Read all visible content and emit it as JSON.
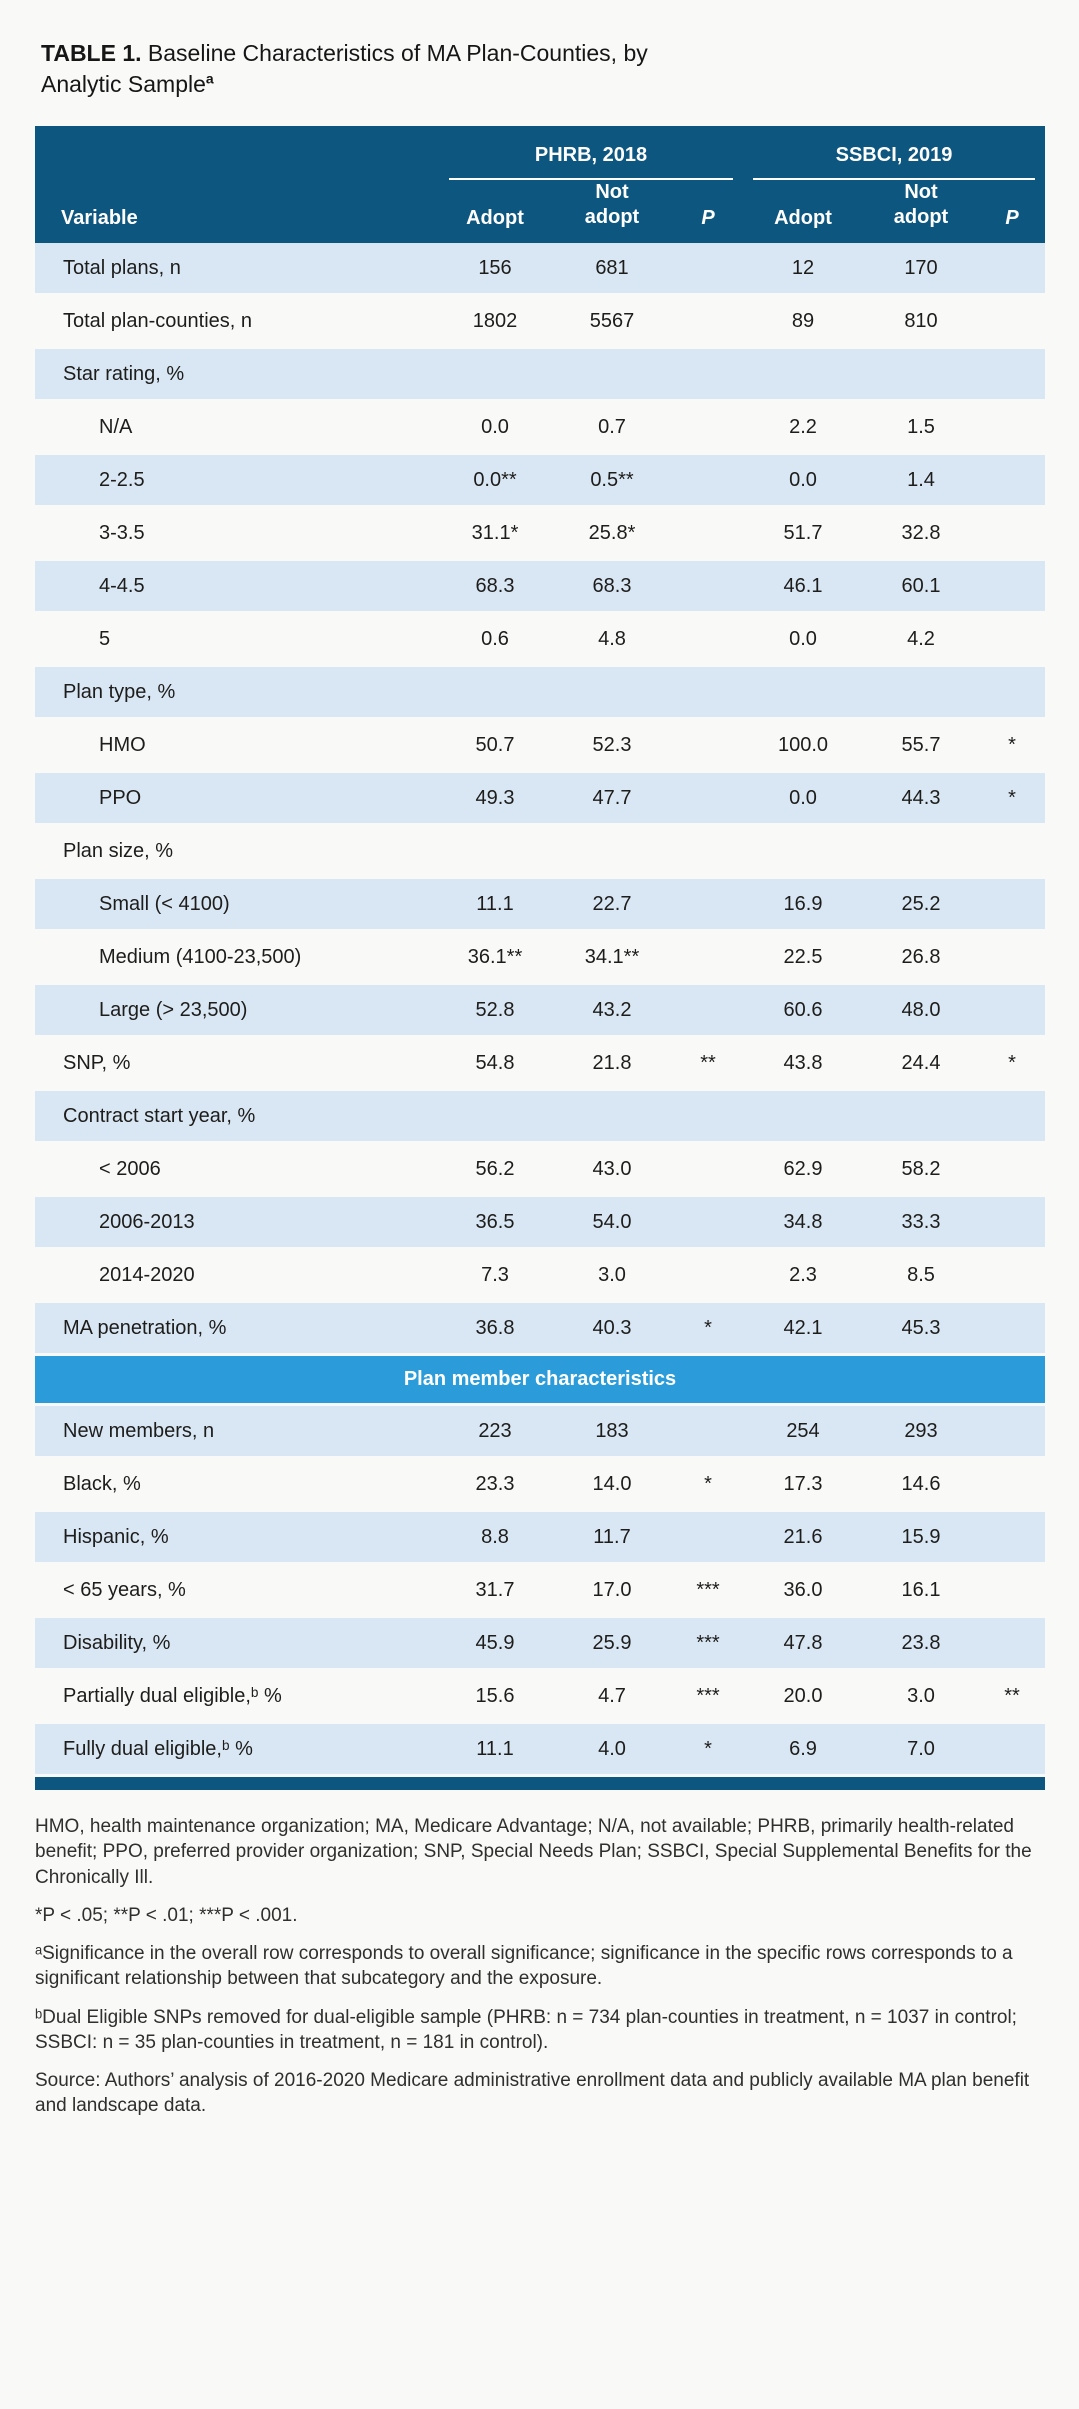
{
  "title": {
    "label": "TABLE 1.",
    "text": " Baseline Characteristics of MA Plan-Counties, by Analytic Sample",
    "superscript": "a"
  },
  "colors": {
    "header_blue": "#0d567f",
    "stripe_blue": "#d9e6f3",
    "banner_blue": "#2b9cd9",
    "bottom_bar_blue": "#0d567f",
    "body_text": "#1d1d1b"
  },
  "table": {
    "group_headers": [
      {
        "label": "PHRB, 2018"
      },
      {
        "label": "SSBCI, 2019"
      }
    ],
    "columns": {
      "variable": "Variable",
      "adopt": "Adopt",
      "not_adopt": "Not adopt",
      "p": "P"
    },
    "rows": [
      {
        "type": "data",
        "label": "Total plans, n",
        "cells": [
          "156",
          "681",
          "",
          "12",
          "170",
          ""
        ]
      },
      {
        "type": "data",
        "label": "Total plan-counties, n",
        "cells": [
          "1802",
          "5567",
          "",
          "89",
          "810",
          ""
        ]
      },
      {
        "type": "section",
        "label": "Star rating, %",
        "cells": [
          "",
          "",
          "",
          "",
          "",
          ""
        ]
      },
      {
        "type": "data",
        "indent": true,
        "label": "N/A",
        "cells": [
          "0.0",
          "0.7",
          "",
          "2.2",
          "1.5",
          ""
        ]
      },
      {
        "type": "data",
        "indent": true,
        "label": "2-2.5",
        "cells": [
          "0.0**",
          "0.5**",
          "",
          "0.0",
          "1.4",
          ""
        ]
      },
      {
        "type": "data",
        "indent": true,
        "label": "3-3.5",
        "cells": [
          "31.1*",
          "25.8*",
          "",
          "51.7",
          "32.8",
          ""
        ]
      },
      {
        "type": "data",
        "indent": true,
        "label": "4-4.5",
        "cells": [
          "68.3",
          "68.3",
          "",
          "46.1",
          "60.1",
          ""
        ]
      },
      {
        "type": "data",
        "indent": true,
        "label": "5",
        "cells": [
          "0.6",
          "4.8",
          "",
          "0.0",
          "4.2",
          ""
        ]
      },
      {
        "type": "section",
        "label": "Plan type, %",
        "cells": [
          "",
          "",
          "",
          "",
          "",
          ""
        ]
      },
      {
        "type": "data",
        "indent": true,
        "label": "HMO",
        "cells": [
          "50.7",
          "52.3",
          "",
          "100.0",
          "55.7",
          "*"
        ]
      },
      {
        "type": "data",
        "indent": true,
        "label": "PPO",
        "cells": [
          "49.3",
          "47.7",
          "",
          "0.0",
          "44.3",
          "*"
        ]
      },
      {
        "type": "section",
        "label": "Plan size, %",
        "cells": [
          "",
          "",
          "",
          "",
          "",
          ""
        ]
      },
      {
        "type": "data",
        "indent": true,
        "label": "Small (< 4100)",
        "cells": [
          "11.1",
          "22.7",
          "",
          "16.9",
          "25.2",
          ""
        ]
      },
      {
        "type": "data",
        "indent": true,
        "label": "Medium (4100-23,500)",
        "cells": [
          "36.1**",
          "34.1**",
          "",
          "22.5",
          "26.8",
          ""
        ]
      },
      {
        "type": "data",
        "indent": true,
        "label": "Large (> 23,500)",
        "cells": [
          "52.8",
          "43.2",
          "",
          "60.6",
          "48.0",
          ""
        ]
      },
      {
        "type": "data",
        "label": "SNP, %",
        "cells": [
          "54.8",
          "21.8",
          "**",
          "43.8",
          "24.4",
          "*"
        ]
      },
      {
        "type": "section",
        "label": "Contract start year, %",
        "cells": [
          "",
          "",
          "",
          "",
          "",
          ""
        ]
      },
      {
        "type": "data",
        "indent": true,
        "label": "< 2006",
        "cells": [
          "56.2",
          "43.0",
          "",
          "62.9",
          "58.2",
          ""
        ]
      },
      {
        "type": "data",
        "indent": true,
        "label": "2006-2013",
        "cells": [
          "36.5",
          "54.0",
          "",
          "34.8",
          "33.3",
          ""
        ]
      },
      {
        "type": "data",
        "indent": true,
        "label": "2014-2020",
        "cells": [
          "7.3",
          "3.0",
          "",
          "2.3",
          "8.5",
          ""
        ]
      },
      {
        "type": "data",
        "label": "MA penetration, %",
        "cells": [
          "36.8",
          "40.3",
          "*",
          "42.1",
          "45.3",
          ""
        ]
      },
      {
        "type": "banner",
        "label": "Plan member characteristics"
      },
      {
        "type": "data",
        "label": "New members, n",
        "cells": [
          "223",
          "183",
          "",
          "254",
          "293",
          ""
        ]
      },
      {
        "type": "data",
        "label": "Black, %",
        "cells": [
          "23.3",
          "14.0",
          "*",
          "17.3",
          "14.6",
          ""
        ]
      },
      {
        "type": "data",
        "label": "Hispanic, %",
        "cells": [
          "8.8",
          "11.7",
          "",
          "21.6",
          "15.9",
          ""
        ]
      },
      {
        "type": "data",
        "label": "< 65 years, %",
        "cells": [
          "31.7",
          "17.0",
          "***",
          "36.0",
          "16.1",
          ""
        ]
      },
      {
        "type": "data",
        "label": "Disability, %",
        "cells": [
          "45.9",
          "25.9",
          "***",
          "47.8",
          "23.8",
          ""
        ]
      },
      {
        "type": "data",
        "label": "Partially dual eligible,ᵇ %",
        "cells": [
          "15.6",
          "4.7",
          "***",
          "20.0",
          "3.0",
          "**"
        ]
      },
      {
        "type": "data",
        "label": "Fully dual eligible,ᵇ %",
        "cells": [
          "11.1",
          "4.0",
          "*",
          "6.9",
          "7.0",
          ""
        ]
      }
    ]
  },
  "footnotes": {
    "abbreviations": "HMO, health maintenance organization; MA, Medicare Advantage; N/A, not available; PHRB, primarily health-related benefit; PPO, preferred provider organization; SNP, Special Needs Plan; SSBCI, Special Supplemental Benefits for the Chronically Ill.",
    "p_values": "*P < .05; **P < .01; ***P < .001.",
    "note_a": "ᵃSignificance in the overall row corresponds to overall significance; significance in the specific rows corresponds to a significant relationship between that subcategory and the exposure.",
    "note_b": "ᵇDual Eligible SNPs removed for dual-eligible sample (PHRB: n = 734 plan-counties in treatment, n = 1037 in control; SSBCI: n = 35 plan-counties in treatment, n = 181 in control).",
    "source": "Source: Authors’ analysis of 2016-2020 Medicare administrative enrollment data and publicly available MA plan benefit and landscape data."
  }
}
